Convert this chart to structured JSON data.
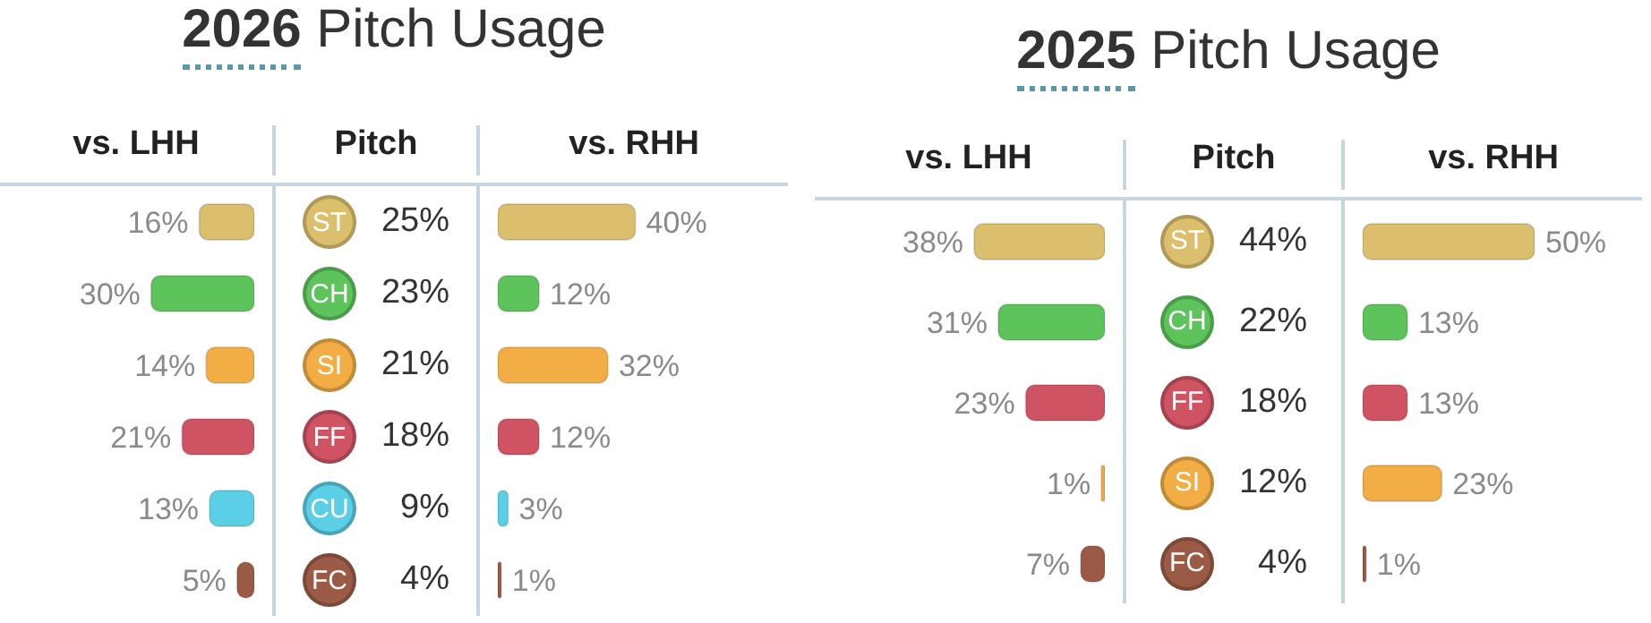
{
  "chart_data": [
    {
      "type": "bar",
      "orientation": "horizontal",
      "title": "2026 Pitch Usage",
      "ylabel": "Pitch",
      "categories": [
        "ST",
        "CH",
        "SI",
        "FF",
        "CU",
        "FC"
      ],
      "tick_labels": "y",
      "series": [
        {
          "name": "vs. LHH",
          "values": [
            16,
            30,
            14,
            21,
            13,
            5
          ],
          "value_labels": [
            "16%",
            "30%",
            "14%",
            "21%",
            "13%",
            "5%"
          ],
          "colors": [
            "#dcbf6c",
            "#5cc45a",
            "#f2ae45",
            "#cf5363",
            "#5bcfe6",
            "#9b5a45"
          ]
        }
      ],
      "annotations": [
        "25%",
        "23%",
        "21%",
        "18%",
        "9%",
        "4%"
      ]
    },
    {
      "type": "bar",
      "orientation": "horizontal",
      "categories": [
        null,
        null,
        null,
        null,
        null,
        null
      ],
      "tick_labels": false,
      "series": [
        {
          "name": "vs. RHH",
          "values": [
            40,
            12,
            32,
            12,
            3,
            1
          ],
          "value_labels": [
            "40%",
            "12%",
            "32%",
            "12%",
            "3%",
            "1%"
          ],
          "colors": [
            "#dcbf6c",
            "#5cc45a",
            "#f2ae45",
            "#cf5363",
            "#5bcfe6",
            "#9b5a45"
          ]
        }
      ]
    },
    {
      "type": "bar",
      "orientation": "horizontal",
      "title": "2025 Pitch Usage",
      "ylabel": "Pitch",
      "categories": [
        "ST",
        "CH",
        "FF",
        "SI",
        "FC"
      ],
      "tick_labels": "y",
      "series": [
        {
          "name": "vs. LHH",
          "values": [
            38,
            31,
            23,
            1,
            7
          ],
          "value_labels": [
            "38%",
            "31%",
            "23%",
            "1%",
            "7%"
          ],
          "colors": [
            "#dcbf6c",
            "#5cc45a",
            "#cf5363",
            "#f2ae45",
            "#9b5a45"
          ]
        }
      ],
      "annotations": [
        "44%",
        "22%",
        "18%",
        "12%",
        "4%"
      ]
    },
    {
      "type": "bar",
      "orientation": "horizontal",
      "categories": [
        null,
        null,
        null,
        null,
        null
      ],
      "tick_labels": false,
      "series": [
        {
          "name": "vs. RHH",
          "values": [
            50,
            13,
            13,
            23,
            1
          ],
          "value_labels": [
            "50%",
            "13%",
            "13%",
            "23%",
            "1%"
          ],
          "colors": [
            "#dcbf6c",
            "#5cc45a",
            "#cf5363",
            "#f2ae45",
            "#9b5a45"
          ]
        }
      ]
    }
  ]
}
